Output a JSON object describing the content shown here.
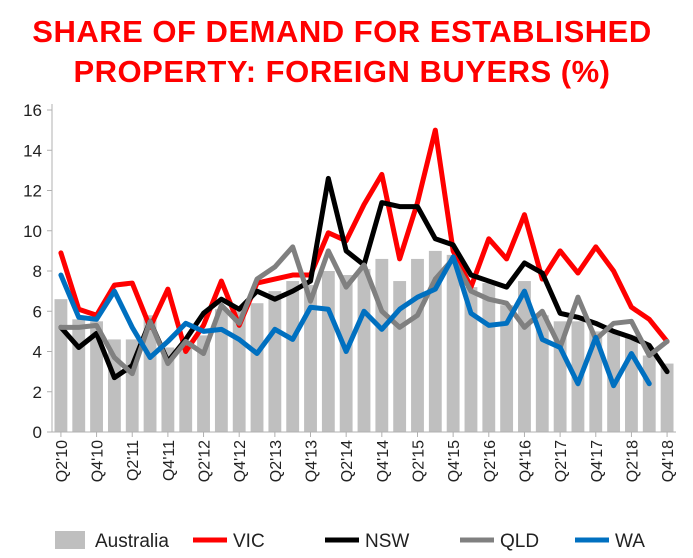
{
  "chart_data": {
    "type": "bar",
    "title_lines": [
      "SHARE OF DEMAND FOR ESTABLISHED",
      "PROPERTY: FOREIGN BUYERS (%)"
    ],
    "xlabel": "",
    "ylabel": "",
    "ylim": [
      0,
      16
    ],
    "y_ticks": [
      "0",
      "2",
      "4",
      "6",
      "8",
      "10",
      "12",
      "14",
      "16"
    ],
    "categories": [
      "Q2'10",
      "Q3'10",
      "Q4'10",
      "Q1'11",
      "Q2'11",
      "Q3'11",
      "Q4'11",
      "Q1'12",
      "Q2'12",
      "Q3'12",
      "Q4'12",
      "Q1'13",
      "Q2'13",
      "Q3'13",
      "Q4'13",
      "Q1'14",
      "Q2'14",
      "Q3'14",
      "Q4'14",
      "Q1'15",
      "Q2'15",
      "Q3'15",
      "Q4'15",
      "Q1'16",
      "Q2'16",
      "Q3'16",
      "Q4'16",
      "Q1'17",
      "Q2'17",
      "Q3'17",
      "Q4'17",
      "Q1'18",
      "Q2'18",
      "Q3'18",
      "Q4'18"
    ],
    "x_tick_labels": [
      "Q2'10",
      "Q4'10",
      "Q2'11",
      "Q4'11",
      "Q2'12",
      "Q4'12",
      "Q2'13",
      "Q4'13",
      "Q2'14",
      "Q4'14",
      "Q2'15",
      "Q4'15",
      "Q2'16",
      "Q4'16",
      "Q2'17",
      "Q4'17",
      "Q2'18",
      "Q4'18"
    ],
    "legend_position": "bottom",
    "grid": false,
    "bars": {
      "name": "Australia",
      "color": "#bfbfbf",
      "values": [
        6.6,
        5.6,
        5.5,
        4.6,
        4.6,
        5.8,
        4.2,
        4.2,
        4.8,
        6.1,
        6.0,
        6.4,
        7.0,
        7.5,
        7.3,
        8.0,
        7.8,
        8.1,
        8.6,
        7.5,
        8.6,
        9.0,
        8.8,
        7.2,
        7.4,
        6.3,
        7.5,
        5.8,
        5.5,
        5.5,
        5.0,
        5.0,
        4.8,
        3.8,
        3.4
      ]
    },
    "series": [
      {
        "name": "VIC",
        "color": "#ff0000",
        "values": [
          8.9,
          6.1,
          5.8,
          7.3,
          7.4,
          5.2,
          7.1,
          4.0,
          5.3,
          7.5,
          5.3,
          7.4,
          7.6,
          7.8,
          7.8,
          9.9,
          9.5,
          11.3,
          12.8,
          8.6,
          11.4,
          15.0,
          9.0,
          7.2,
          9.6,
          8.6,
          10.8,
          7.6,
          9.0,
          7.9,
          9.2,
          8.0,
          6.2,
          5.6,
          4.5
        ]
      },
      {
        "name": "NSW",
        "color": "#000000",
        "values": [
          5.2,
          4.2,
          4.9,
          2.7,
          3.3,
          5.5,
          3.5,
          4.6,
          5.9,
          6.6,
          6.1,
          7.0,
          6.6,
          7.0,
          7.5,
          12.6,
          9.0,
          8.3,
          11.4,
          11.2,
          11.2,
          9.6,
          9.3,
          7.8,
          7.5,
          7.2,
          8.4,
          7.9,
          5.9,
          5.7,
          5.4,
          5.0,
          4.7,
          4.3,
          3.0
        ]
      },
      {
        "name": "QLD",
        "color": "#808080",
        "values": [
          5.2,
          5.2,
          5.3,
          3.7,
          2.9,
          5.5,
          3.4,
          4.5,
          3.9,
          6.3,
          5.4,
          7.6,
          8.2,
          9.2,
          6.5,
          9.0,
          7.2,
          8.3,
          6.0,
          5.2,
          5.8,
          7.6,
          8.6,
          7.0,
          6.6,
          6.4,
          5.2,
          6.0,
          4.2,
          6.7,
          4.6,
          5.4,
          5.5,
          3.8,
          4.5
        ]
      },
      {
        "name": "WA",
        "color": "#0070c0",
        "values": [
          7.8,
          5.7,
          5.6,
          7.0,
          5.2,
          3.7,
          4.5,
          5.4,
          5.0,
          5.1,
          4.6,
          3.9,
          5.1,
          4.6,
          6.2,
          6.1,
          4.0,
          6.0,
          5.1,
          6.1,
          6.7,
          7.1,
          8.7,
          5.9,
          5.3,
          5.4,
          7.0,
          4.6,
          4.2,
          2.4,
          4.7,
          2.3,
          3.9,
          2.4,
          null
        ]
      }
    ]
  }
}
